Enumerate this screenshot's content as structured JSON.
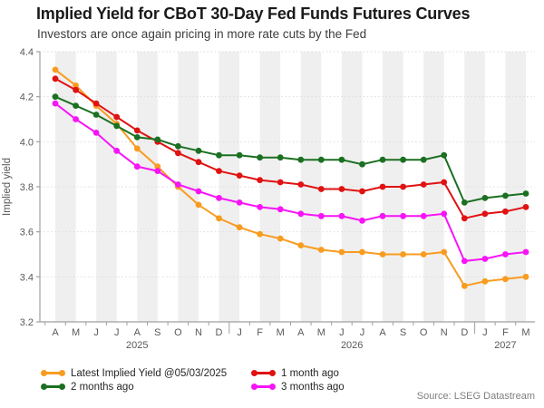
{
  "chart_data": {
    "type": "line",
    "title": "Implied Yield for CBoT 30-Day Fed Funds Futures Curves",
    "subtitle": "Investors are once again pricing in more rate cuts by the Fed",
    "ylabel": "Implied yield",
    "ylim": [
      3.2,
      4.4
    ],
    "y_ticks": [
      4.4,
      4.2,
      4.0,
      3.8,
      3.6,
      3.4,
      3.2
    ],
    "grid": "horizontal-dotted",
    "background_stripes": true,
    "legend_position": "bottom",
    "x_labels": [
      "A",
      "M",
      "J",
      "J",
      "A",
      "S",
      "O",
      "N",
      "D",
      "J",
      "F",
      "M",
      "A",
      "M",
      "J",
      "J",
      "A",
      "S",
      "O",
      "N",
      "D",
      "J",
      "F",
      "M"
    ],
    "year_labels": [
      {
        "label": "2025",
        "center_index": 4
      },
      {
        "label": "2026",
        "center_index": 14.5
      },
      {
        "label": "2027",
        "center_index": 22
      }
    ],
    "year_boundary_indices": [
      9,
      21
    ],
    "series": [
      {
        "key": "latest",
        "name": "Latest Implied Yield @05/03/2025",
        "color": "#F89C20",
        "values": [
          4.32,
          4.25,
          4.16,
          4.08,
          3.97,
          3.89,
          3.8,
          3.72,
          3.66,
          3.62,
          3.59,
          3.57,
          3.54,
          3.52,
          3.51,
          3.51,
          3.5,
          3.5,
          3.5,
          3.51,
          3.36,
          3.38,
          3.39,
          3.4
        ]
      },
      {
        "key": "1-month-ago",
        "name": "1 month ago",
        "color": "#E01212",
        "values": [
          4.28,
          4.23,
          4.17,
          4.11,
          4.05,
          4.0,
          3.95,
          3.91,
          3.87,
          3.85,
          3.83,
          3.82,
          3.81,
          3.79,
          3.79,
          3.78,
          3.8,
          3.8,
          3.81,
          3.82,
          3.66,
          3.68,
          3.69,
          3.71
        ]
      },
      {
        "key": "2-months-ago",
        "name": "2 months ago",
        "color": "#1B7021",
        "values": [
          4.2,
          4.16,
          4.12,
          4.07,
          4.02,
          4.01,
          3.98,
          3.96,
          3.94,
          3.94,
          3.93,
          3.93,
          3.92,
          3.92,
          3.92,
          3.9,
          3.92,
          3.92,
          3.92,
          3.94,
          3.73,
          3.75,
          3.76,
          3.77
        ]
      },
      {
        "key": "3-months-ago",
        "name": "3 months ago",
        "color": "#F714F7",
        "values": [
          4.17,
          4.1,
          4.04,
          3.96,
          3.89,
          3.87,
          3.81,
          3.78,
          3.75,
          3.73,
          3.71,
          3.7,
          3.68,
          3.67,
          3.67,
          3.65,
          3.67,
          3.67,
          3.67,
          3.68,
          3.47,
          3.48,
          3.5,
          3.51
        ]
      }
    ],
    "source": "Source: LSEG Datastream",
    "colors": {
      "stripe": "#EFEFEF",
      "grid": "#DBDBDB",
      "axis": "#A0A0A0",
      "tick_text": "#595959",
      "title": "#1A1A1A",
      "subtitle": "#3D3D3D",
      "legend_text": "#262626",
      "source_text": "#808080"
    }
  }
}
